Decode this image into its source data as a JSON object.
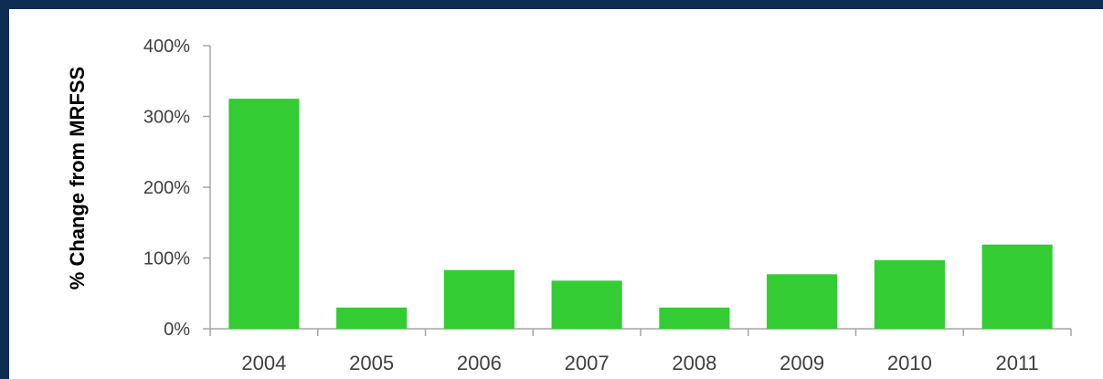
{
  "chart_data": {
    "type": "bar",
    "title": "",
    "xlabel": "",
    "ylabel": "% Change from MRFSS",
    "categories": [
      "2004",
      "2005",
      "2006",
      "2007",
      "2008",
      "2009",
      "2010",
      "2011"
    ],
    "values": [
      325,
      30,
      83,
      68,
      30,
      77,
      97,
      119
    ],
    "ylim": [
      0,
      400
    ],
    "yticks": [
      0,
      100,
      200,
      300,
      400
    ],
    "ytick_labels": [
      "0%",
      "100%",
      "200%",
      "300%",
      "400%"
    ],
    "grid": false,
    "legend": "none",
    "colors": {
      "bar": "#33cc33",
      "background": "#ffffff",
      "frame": "#0f2d52",
      "axis": "#a6a6a6"
    }
  }
}
